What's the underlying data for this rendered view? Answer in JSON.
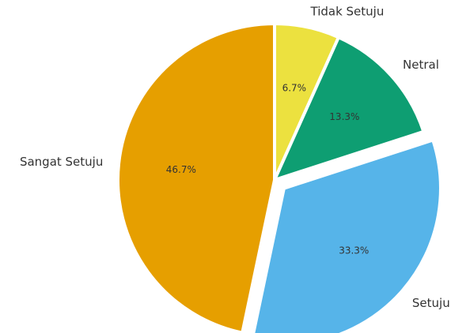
{
  "chart_data": {
    "type": "pie",
    "title": "",
    "categories": [
      "Tidak Setuju",
      "Netral",
      "Setuju",
      "Sangat Setuju"
    ],
    "values": [
      6.7,
      13.3,
      33.3,
      46.7
    ],
    "percent_labels": [
      "6.7%",
      "13.3%",
      "33.3%",
      "46.7%"
    ],
    "colors": [
      "#ECE13F",
      "#0E9E72",
      "#56B4E9",
      "#E69F00"
    ],
    "exploded": [
      false,
      false,
      true,
      false
    ],
    "start_angle_deg": 90,
    "direction": "clockwise"
  }
}
